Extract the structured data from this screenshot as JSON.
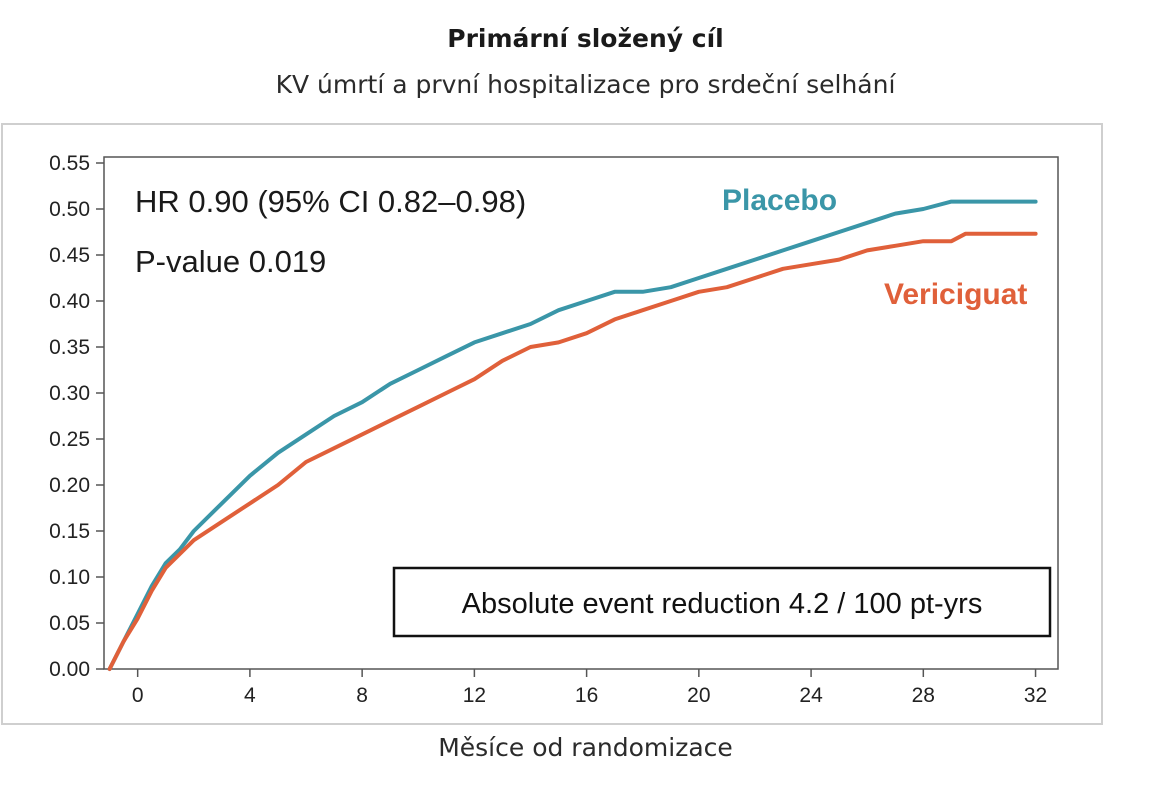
{
  "chart_data": {
    "type": "line",
    "title": "Primární složený cíl",
    "subtitle": "KV úmrtí a první hospitalizace pro srdeční selhání",
    "xlabel": "Měsíce od randomizace",
    "ylabel": "",
    "xlim": [
      -1.2,
      32.8
    ],
    "ylim": [
      0.0,
      0.55
    ],
    "x_ticks": [
      "0",
      "4",
      "8",
      "12",
      "16",
      "20",
      "24",
      "28",
      "32"
    ],
    "y_ticks": [
      "0.00",
      "0.05",
      "0.10",
      "0.15",
      "0.20",
      "0.25",
      "0.30",
      "0.35",
      "0.40",
      "0.45",
      "0.50",
      "0.55"
    ],
    "grid": false,
    "annotations": {
      "hr": "HR 0.90 (95% CI 0.82–0.98)",
      "pvalue": "P-value 0.019",
      "box": "Absolute event reduction 4.2 / 100 pt-yrs"
    },
    "series": [
      {
        "name": "Placebo",
        "color": "#3a96a8",
        "x": [
          -1,
          -0.5,
          0,
          0.5,
          1,
          1.5,
          2,
          3,
          4,
          5,
          6,
          7,
          8,
          9,
          10,
          11,
          12,
          13,
          14,
          15,
          16,
          17,
          18,
          19,
          20,
          21,
          22,
          23,
          24,
          25,
          26,
          27,
          28,
          29,
          30,
          31,
          32
        ],
        "y": [
          0.0,
          0.03,
          0.06,
          0.09,
          0.115,
          0.13,
          0.15,
          0.18,
          0.21,
          0.235,
          0.255,
          0.275,
          0.29,
          0.31,
          0.325,
          0.34,
          0.355,
          0.365,
          0.375,
          0.39,
          0.4,
          0.41,
          0.41,
          0.415,
          0.425,
          0.435,
          0.445,
          0.455,
          0.465,
          0.475,
          0.485,
          0.495,
          0.5,
          0.508,
          0.508,
          0.508,
          0.508
        ]
      },
      {
        "name": "Vericiguat",
        "color": "#e0603a",
        "x": [
          -1,
          -0.5,
          0,
          0.5,
          1,
          1.5,
          2,
          3,
          4,
          5,
          6,
          7,
          8,
          9,
          10,
          11,
          12,
          13,
          14,
          15,
          16,
          17,
          18,
          19,
          20,
          21,
          22,
          23,
          24,
          25,
          26,
          27,
          28,
          29,
          29.5,
          30,
          31,
          32
        ],
        "y": [
          0.0,
          0.03,
          0.055,
          0.085,
          0.11,
          0.125,
          0.14,
          0.16,
          0.18,
          0.2,
          0.225,
          0.24,
          0.255,
          0.27,
          0.285,
          0.3,
          0.315,
          0.335,
          0.35,
          0.355,
          0.365,
          0.38,
          0.39,
          0.4,
          0.41,
          0.415,
          0.425,
          0.435,
          0.44,
          0.445,
          0.455,
          0.46,
          0.465,
          0.465,
          0.473,
          0.473,
          0.473,
          0.473
        ]
      }
    ]
  }
}
